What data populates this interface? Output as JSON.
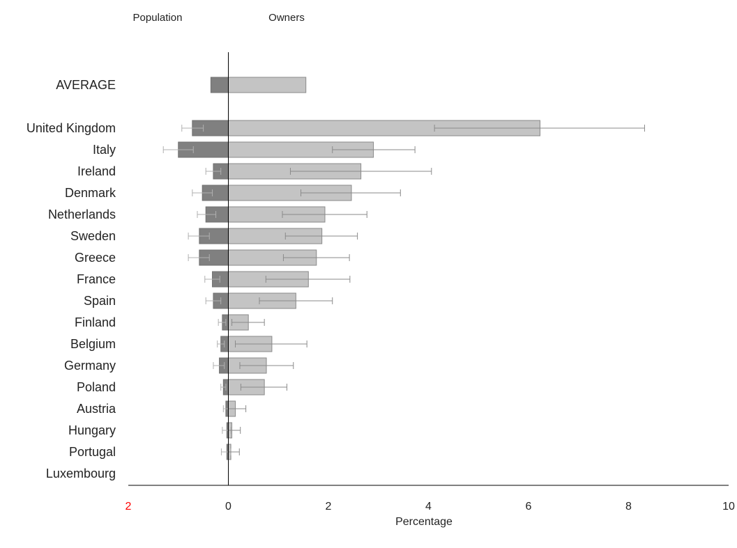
{
  "chart_data": {
    "type": "bar",
    "orientation": "horizontal",
    "xlabel": "Percentage",
    "xlim": [
      -2,
      10
    ],
    "x_ticks": [
      {
        "value": -2,
        "label": "2",
        "color": "#ff0000"
      },
      {
        "value": 0,
        "label": "0"
      },
      {
        "value": 2,
        "label": "2"
      },
      {
        "value": 4,
        "label": "4"
      },
      {
        "value": 6,
        "label": "6"
      },
      {
        "value": 8,
        "label": "8"
      },
      {
        "value": 10,
        "label": "10"
      }
    ],
    "grid": false,
    "legend_placement": "top",
    "categories": [
      "AVERAGE",
      "United Kingdom",
      "Italy",
      "Ireland",
      "Denmark",
      "Netherlands",
      "Sweden",
      "Greece",
      "France",
      "Spain",
      "Finland",
      "Belgium",
      "Germany",
      "Poland",
      "Austria",
      "Hungary",
      "Portugal",
      "Luxembourg"
    ],
    "series": [
      {
        "name": "Population",
        "color": "#808080",
        "values": [
          -0.35,
          -0.72,
          -1.0,
          -0.3,
          -0.52,
          -0.45,
          -0.58,
          -0.58,
          -0.32,
          -0.3,
          -0.12,
          -0.15,
          -0.18,
          -0.1,
          -0.05,
          -0.03,
          -0.03,
          0.0
        ],
        "error_low": [
          null,
          -0.93,
          -1.3,
          -0.45,
          -0.72,
          -0.62,
          -0.8,
          -0.8,
          -0.47,
          -0.45,
          -0.2,
          -0.22,
          -0.3,
          -0.15,
          -0.1,
          -0.12,
          -0.14,
          null
        ],
        "error_high": [
          null,
          -0.5,
          -0.7,
          -0.15,
          -0.32,
          -0.25,
          -0.38,
          -0.38,
          -0.17,
          -0.15,
          -0.05,
          -0.08,
          -0.08,
          -0.05,
          0.0,
          0.05,
          0.05,
          null
        ]
      },
      {
        "name": "Owners",
        "color": "#c4c4c4",
        "values": [
          1.55,
          6.23,
          2.9,
          2.65,
          2.46,
          1.93,
          1.87,
          1.76,
          1.6,
          1.35,
          0.4,
          0.87,
          0.76,
          0.72,
          0.14,
          0.07,
          0.05,
          0.0
        ],
        "error_low": [
          null,
          4.12,
          2.08,
          1.24,
          1.45,
          1.08,
          1.14,
          1.1,
          0.75,
          0.62,
          0.07,
          0.14,
          0.23,
          0.25,
          0.0,
          0.0,
          0.0,
          null
        ],
        "error_high": [
          null,
          8.32,
          3.73,
          4.06,
          3.44,
          2.77,
          2.58,
          2.42,
          2.43,
          2.08,
          0.72,
          1.57,
          1.3,
          1.17,
          0.35,
          0.24,
          0.22,
          null
        ]
      }
    ]
  }
}
